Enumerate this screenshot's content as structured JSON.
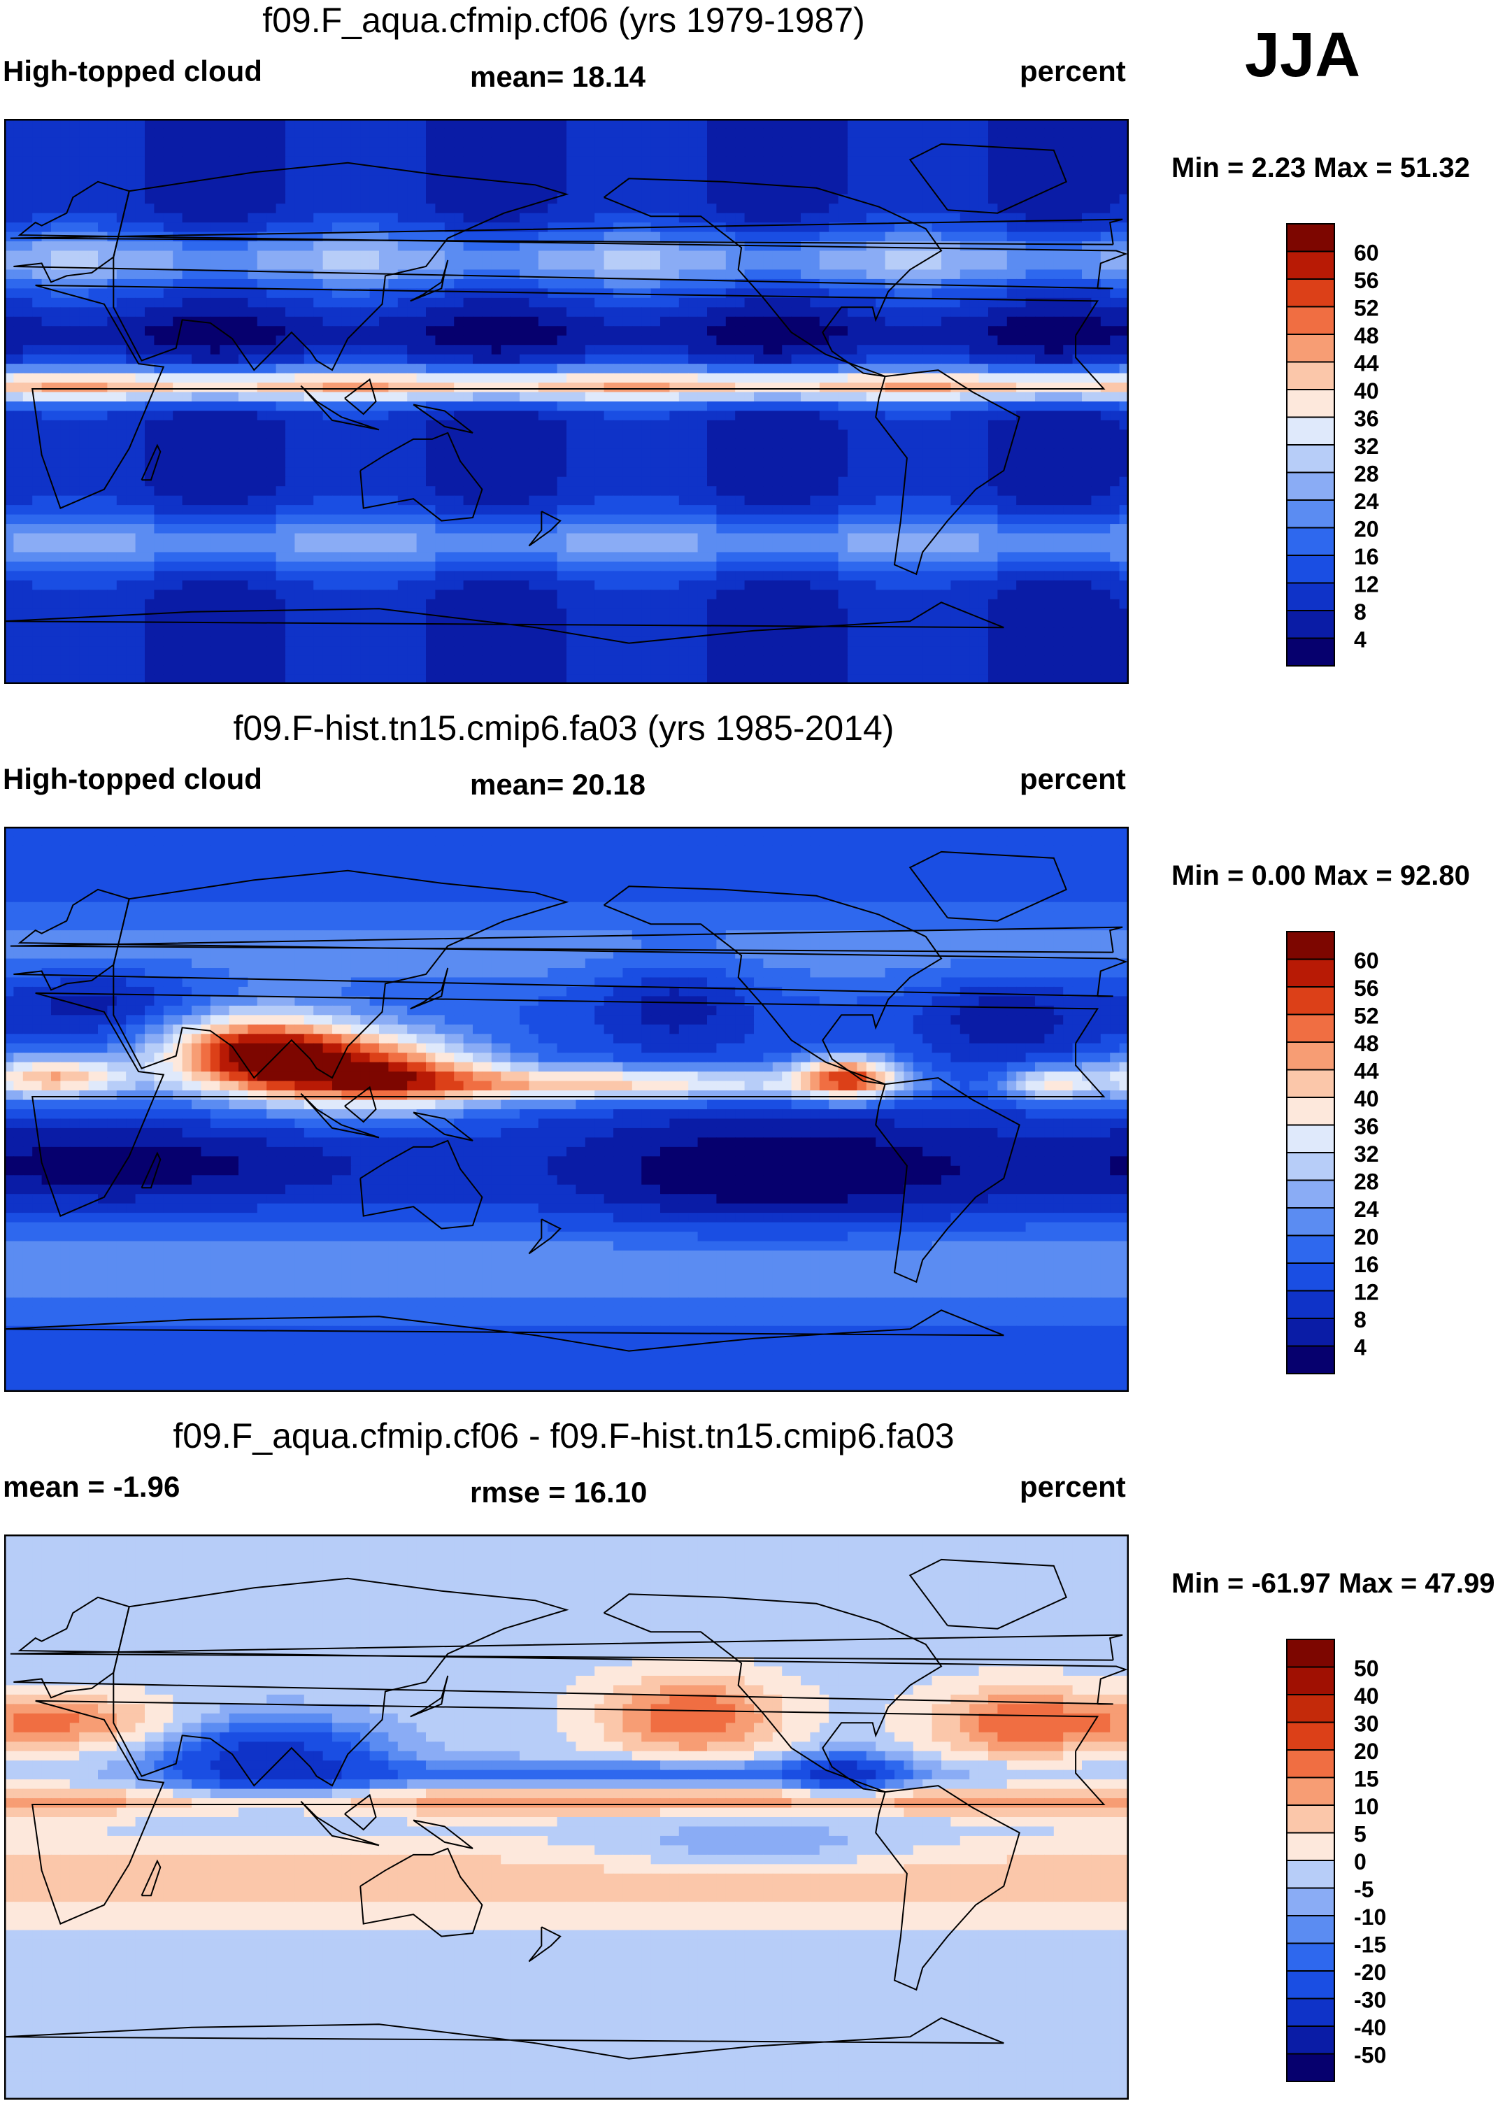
{
  "season_label": "JJA",
  "chart_data": [
    {
      "type": "heatmap",
      "title": "f09.F_aqua.cfmip.cf06 (yrs 1979-1987)",
      "variable_label": "High-topped cloud",
      "stat_label": "mean=  18.14",
      "units_label": "percent",
      "minmax_label": "Min =    2.23 Max =  51.32",
      "min": 2.23,
      "max": 51.32,
      "mean": 18.14,
      "colorbar_ticks": [
        "60",
        "56",
        "52",
        "48",
        "44",
        "40",
        "36",
        "32",
        "28",
        "24",
        "20",
        "16",
        "12",
        "8",
        "4"
      ],
      "colorbar_levels": [
        4,
        8,
        12,
        16,
        20,
        24,
        28,
        32,
        36,
        40,
        44,
        48,
        52,
        56,
        60
      ],
      "colors": [
        "#06006e",
        "#0a1ca6",
        "#0f33c8",
        "#1a4ee3",
        "#2e68ee",
        "#5b8cf2",
        "#8aacf5",
        "#b7cdf8",
        "#dfe9fb",
        "#fde8dc",
        "#fbc7aa",
        "#f79d74",
        "#f06e42",
        "#dc4018",
        "#b81a05",
        "#7d0600"
      ],
      "grid": "zonal bands: tropical maximum ~40-48% near 5N, subtropical minima ~4-12%, midlatitude bands ~24-32%"
    },
    {
      "type": "heatmap",
      "title": "f09.F-hist.tn15.cmip6.fa03 (yrs 1985-2014)",
      "variable_label": "High-topped cloud",
      "stat_label": "mean=  20.18",
      "units_label": "percent",
      "minmax_label": "Min =    0.00 Max =  92.80",
      "min": 0.0,
      "max": 92.8,
      "mean": 20.18,
      "colorbar_ticks": [
        "60",
        "56",
        "52",
        "48",
        "44",
        "40",
        "36",
        "32",
        "28",
        "24",
        "20",
        "16",
        "12",
        "8",
        "4"
      ],
      "colorbar_levels": [
        4,
        8,
        12,
        16,
        20,
        24,
        28,
        32,
        36,
        40,
        44,
        48,
        52,
        56,
        60
      ],
      "colors": [
        "#06006e",
        "#0a1ca6",
        "#0f33c8",
        "#1a4ee3",
        "#2e68ee",
        "#5b8cf2",
        "#8aacf5",
        "#b7cdf8",
        "#dfe9fb",
        "#fde8dc",
        "#fbc7aa",
        "#f79d74",
        "#f06e42",
        "#dc4018",
        "#b81a05",
        "#7d0600"
      ],
      "grid": "observations: monsoon maxima over India/Bay of Bengal and West Africa, ITCZ across Pacific, subtropical minima"
    },
    {
      "type": "heatmap",
      "title": "f09.F_aqua.cfmip.cf06 - f09.F-hist.tn15.cmip6.fa03",
      "variable_label": "mean =  -1.96",
      "stat_label": "rmse =  16.10",
      "units_label": "percent",
      "minmax_label": "Min = -61.97 Max =  47.99",
      "min": -61.97,
      "max": 47.99,
      "mean": -1.96,
      "rmse": 16.1,
      "colorbar_ticks": [
        "50",
        "40",
        "30",
        "20",
        "15",
        "10",
        "5",
        "0",
        "-5",
        "-10",
        "-15",
        "-20",
        "-30",
        "-40",
        "-50"
      ],
      "colorbar_levels": [
        -50,
        -40,
        -30,
        -20,
        -15,
        -10,
        -5,
        0,
        5,
        10,
        15,
        20,
        30,
        40,
        50
      ],
      "colors": [
        "#06006e",
        "#0a1ca6",
        "#0f33c8",
        "#1a4ee3",
        "#2e68ee",
        "#5b8cf2",
        "#8aacf5",
        "#b7cdf8",
        "#fde8dc",
        "#fbc7aa",
        "#f79d74",
        "#f06e42",
        "#dc4018",
        "#c42a0a",
        "#a01002",
        "#7d0600"
      ],
      "grid": "difference: positive along equatorial band and subtropical oceans, negative over Asian monsoon and ITCZ flanks"
    }
  ]
}
